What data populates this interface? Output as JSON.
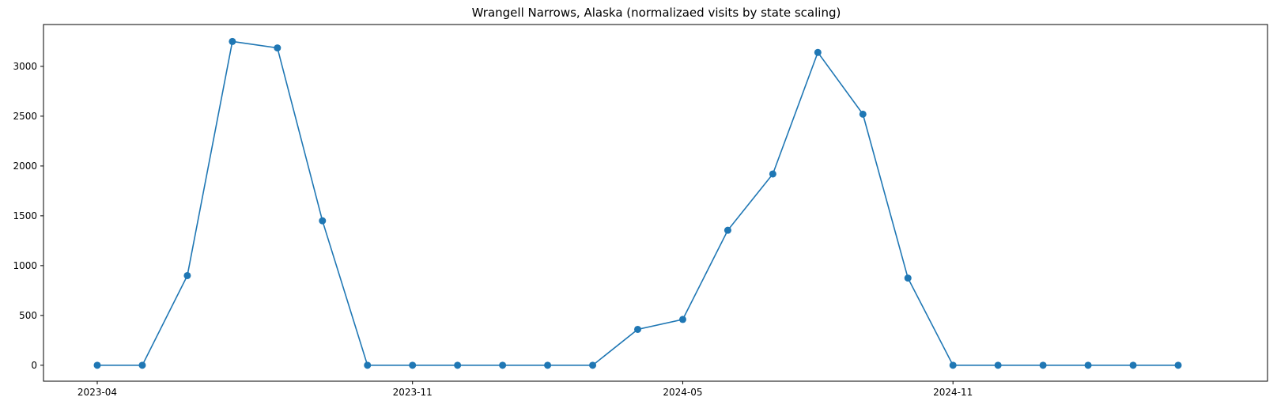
{
  "chart_data": {
    "type": "line",
    "title": "Wrangell Narrows, Alaska (normalizaed visits by state scaling)",
    "xlabel": "",
    "ylabel": "",
    "x": [
      "2023-04",
      "2023-05",
      "2023-06",
      "2023-07",
      "2023-08",
      "2023-09",
      "2023-10",
      "2023-11",
      "2023-12",
      "2024-01",
      "2024-02",
      "2024-03",
      "2024-04",
      "2024-05",
      "2024-06",
      "2024-07",
      "2024-08",
      "2024-09",
      "2024-10",
      "2024-11",
      "2024-12",
      "2025-01",
      "2025-02",
      "2025-03",
      "2025-04"
    ],
    "series": [
      {
        "values": [
          0,
          0,
          900,
          3250,
          3185,
          1450,
          0,
          0,
          0,
          0,
          0,
          0,
          360,
          460,
          1355,
          1920,
          3140,
          2520,
          875,
          0,
          0,
          0,
          0,
          0,
          0
        ]
      }
    ],
    "x_tick_labels": [
      "2023-04",
      "2023-11",
      "2024-05",
      "2024-11"
    ],
    "y_tick_labels": [
      "0",
      "500",
      "1000",
      "1500",
      "2000",
      "2500",
      "3000"
    ],
    "ylim": [
      -160,
      3420
    ],
    "grid": false,
    "legend": "none",
    "color": "#1f77b4"
  }
}
